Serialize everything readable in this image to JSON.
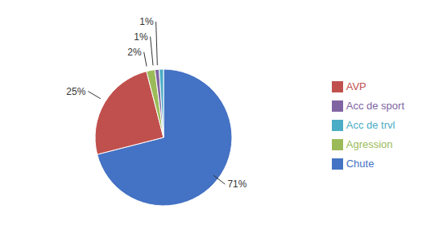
{
  "chart_data": {
    "type": "pie",
    "categories": [
      "Chute",
      "AVP",
      "Agression",
      "Acc de sport",
      "Acc de trvl"
    ],
    "values": [
      71,
      25,
      2,
      1,
      1
    ],
    "value_labels": [
      "71%",
      "25%",
      "2%",
      "1%",
      "1%"
    ],
    "colors": [
      "#4472C4",
      "#C0504D",
      "#9BBB59",
      "#8064A2",
      "#4BACC6"
    ],
    "data_labels": true,
    "legend": "right"
  }
}
